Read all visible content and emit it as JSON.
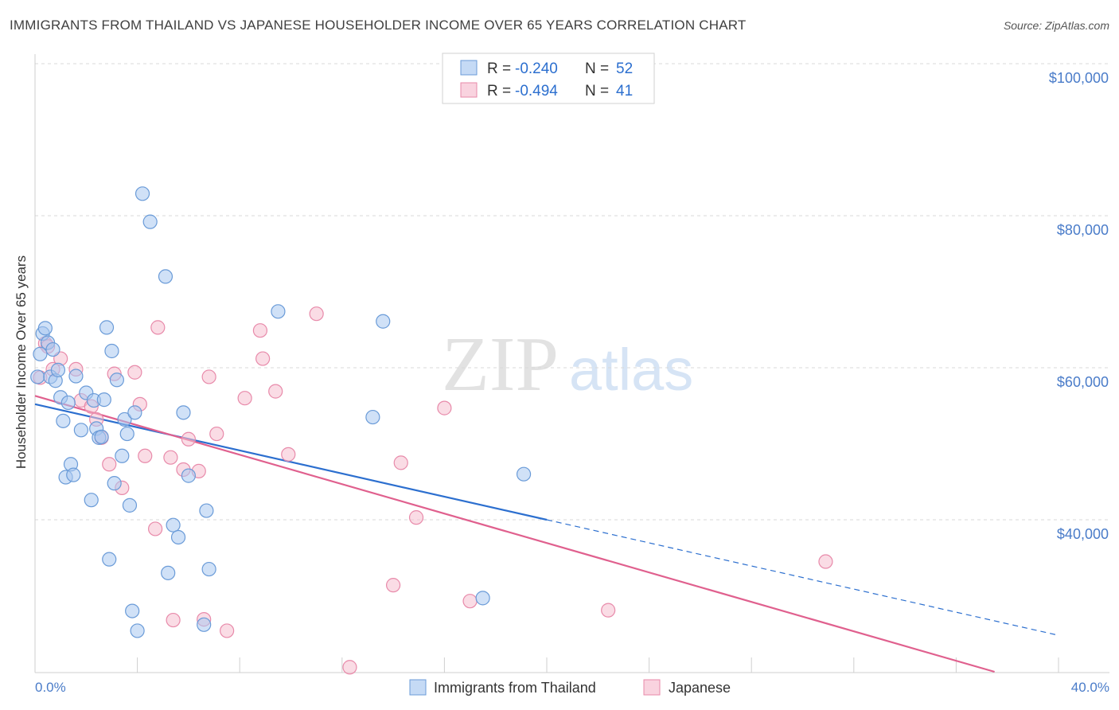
{
  "header": {
    "title": "IMMIGRANTS FROM THAILAND VS JAPANESE HOUSEHOLDER INCOME OVER 65 YEARS CORRELATION CHART",
    "source": "Source: ZipAtlas.com"
  },
  "watermark": {
    "zip": "ZIP",
    "atlas": "atlas"
  },
  "colors": {
    "blue": "#a9c8f0",
    "blue_stroke": "#6a9bd8",
    "blue_line": "#2c6fcf",
    "pink": "#f5bfd0",
    "pink_stroke": "#e88aaa",
    "pink_line": "#e0608e",
    "axis_text": "#4a7cc9",
    "grid": "#d8d8d8"
  },
  "legend_top": {
    "rows": [
      {
        "r_label": "R = ",
        "r_value": "-0.240",
        "n_label": "N = ",
        "n_value": "52"
      },
      {
        "r_label": "R = ",
        "r_value": "-0.494",
        "n_label": "N = ",
        "n_value": "41"
      }
    ]
  },
  "chart_data": {
    "type": "scatter",
    "title": "IMMIGRANTS FROM THAILAND VS JAPANESE HOUSEHOLDER INCOME OVER 65 YEARS CORRELATION CHART",
    "xlabel": "",
    "ylabel": "Householder Income Over 65 years",
    "xlim": [
      0,
      40
    ],
    "ylim": [
      20000,
      105000
    ],
    "x_tick_labels": [
      "0.0%",
      "40.0%"
    ],
    "y_ticks": [
      {
        "value": 100000,
        "label": "$100,000"
      },
      {
        "value": 80000,
        "label": "$80,000"
      },
      {
        "value": 60000,
        "label": "$60,000"
      },
      {
        "value": 40000,
        "label": "$40,000"
      }
    ],
    "series": [
      {
        "name": "Immigrants from Thailand",
        "color": "blue",
        "R": -0.24,
        "N": 52,
        "trend": {
          "x0": 0,
          "y0": 55200,
          "x1": 40,
          "y1": 24800,
          "solid_until_x": 20
        },
        "points": [
          [
            0.1,
            58800
          ],
          [
            0.3,
            64500
          ],
          [
            0.4,
            65200
          ],
          [
            0.5,
            63300
          ],
          [
            0.6,
            58800
          ],
          [
            0.7,
            62400
          ],
          [
            0.8,
            58300
          ],
          [
            0.9,
            59700
          ],
          [
            1.0,
            56100
          ],
          [
            1.1,
            53000
          ],
          [
            1.2,
            45600
          ],
          [
            1.4,
            47300
          ],
          [
            1.5,
            45900
          ],
          [
            1.6,
            58900
          ],
          [
            1.8,
            51800
          ],
          [
            2.0,
            56700
          ],
          [
            2.2,
            42600
          ],
          [
            2.3,
            55700
          ],
          [
            2.4,
            52000
          ],
          [
            2.5,
            50800
          ],
          [
            2.7,
            55800
          ],
          [
            2.8,
            65300
          ],
          [
            2.9,
            34800
          ],
          [
            3.0,
            62200
          ],
          [
            3.1,
            44800
          ],
          [
            3.2,
            58400
          ],
          [
            3.4,
            48400
          ],
          [
            3.5,
            53200
          ],
          [
            3.6,
            51300
          ],
          [
            3.7,
            41900
          ],
          [
            3.8,
            28000
          ],
          [
            3.9,
            54100
          ],
          [
            4.0,
            25400
          ],
          [
            4.2,
            82900
          ],
          [
            4.5,
            79200
          ],
          [
            5.1,
            72000
          ],
          [
            5.2,
            33000
          ],
          [
            5.4,
            39300
          ],
          [
            5.6,
            37700
          ],
          [
            5.8,
            54100
          ],
          [
            6.0,
            45800
          ],
          [
            6.6,
            26200
          ],
          [
            6.7,
            41200
          ],
          [
            6.8,
            33500
          ],
          [
            9.5,
            67400
          ],
          [
            13.2,
            53500
          ],
          [
            13.6,
            66100
          ],
          [
            17.5,
            29700
          ],
          [
            19.1,
            46000
          ],
          [
            0.2,
            61800
          ],
          [
            1.3,
            55400
          ],
          [
            2.6,
            50900
          ]
        ]
      },
      {
        "name": "Japanese",
        "color": "pink",
        "R": -0.494,
        "N": 41,
        "trend": {
          "x0": 0,
          "y0": 56300,
          "x1": 37.5,
          "y1": 20000,
          "solid_until_x": 37.5
        },
        "points": [
          [
            0.2,
            58700
          ],
          [
            0.4,
            63200
          ],
          [
            0.7,
            59800
          ],
          [
            1.0,
            61200
          ],
          [
            1.6,
            59800
          ],
          [
            1.8,
            55700
          ],
          [
            2.2,
            54900
          ],
          [
            2.4,
            53200
          ],
          [
            2.6,
            50800
          ],
          [
            2.9,
            47300
          ],
          [
            3.1,
            59200
          ],
          [
            3.4,
            44200
          ],
          [
            3.9,
            59400
          ],
          [
            4.1,
            55200
          ],
          [
            4.3,
            48400
          ],
          [
            4.7,
            38800
          ],
          [
            4.8,
            65300
          ],
          [
            5.3,
            48200
          ],
          [
            5.4,
            26800
          ],
          [
            5.8,
            46600
          ],
          [
            6.0,
            50600
          ],
          [
            6.4,
            46400
          ],
          [
            6.6,
            26900
          ],
          [
            6.8,
            58800
          ],
          [
            7.1,
            51300
          ],
          [
            7.5,
            25400
          ],
          [
            8.2,
            56000
          ],
          [
            8.8,
            64900
          ],
          [
            8.9,
            61200
          ],
          [
            9.4,
            56900
          ],
          [
            9.9,
            48600
          ],
          [
            11.0,
            67100
          ],
          [
            12.3,
            20600
          ],
          [
            14.0,
            31400
          ],
          [
            14.3,
            47500
          ],
          [
            14.9,
            40300
          ],
          [
            16.0,
            54700
          ],
          [
            17.0,
            29300
          ],
          [
            22.4,
            28100
          ],
          [
            30.9,
            34500
          ],
          [
            0.5,
            62800
          ]
        ]
      }
    ]
  },
  "legend_bottom": {
    "items": [
      {
        "label": "Immigrants from Thailand"
      },
      {
        "label": "Japanese"
      }
    ]
  }
}
